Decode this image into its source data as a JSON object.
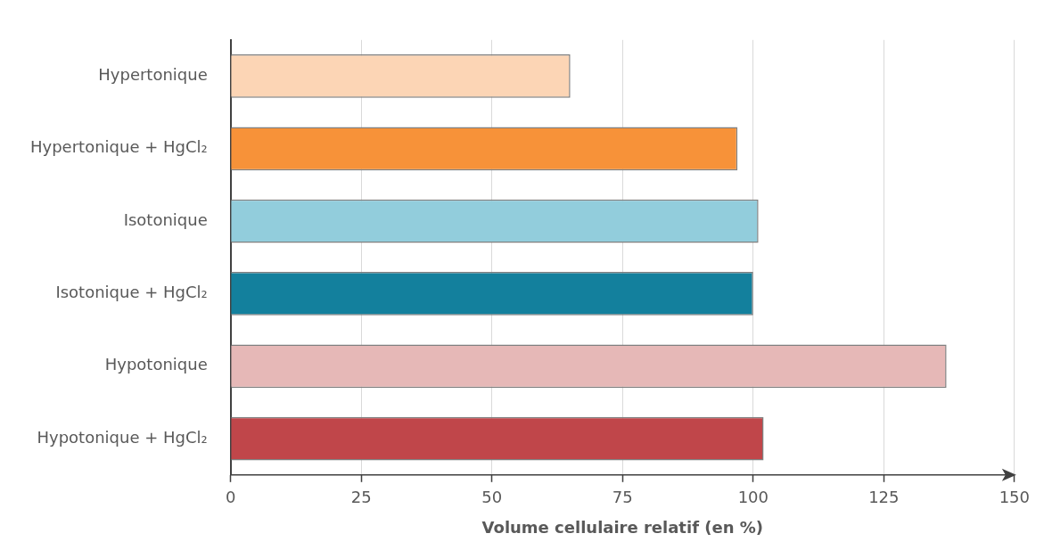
{
  "chart_data": {
    "type": "bar",
    "orientation": "horizontal",
    "categories": [
      "Hypertonique",
      "Hypertonique + HgCl₂",
      "Isotonique",
      "Isotonique + HgCl₂",
      "Hypotonique",
      "Hypotonique + HgCl₂"
    ],
    "values": [
      65,
      97,
      101,
      100,
      137,
      102
    ],
    "colors": [
      "#fcd5b5",
      "#f79239",
      "#92cddc",
      "#13809d",
      "#e6b8b7",
      "#c0464a"
    ],
    "xlabel": "Volume cellulaire relatif (en %)",
    "xlim": [
      0,
      150
    ],
    "xticks": [
      0,
      25,
      50,
      75,
      100,
      125,
      150
    ],
    "grid": "x",
    "legend": false
  }
}
